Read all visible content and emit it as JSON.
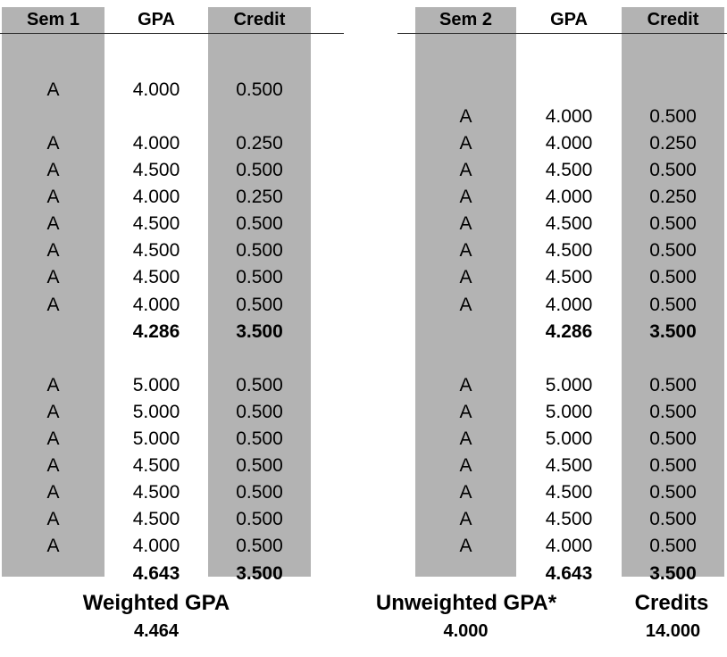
{
  "semesters": [
    {
      "headers": {
        "sem": "Sem 1",
        "gpa": "GPA",
        "credit": "Credit"
      },
      "rows": [
        {
          "row": 2,
          "grade": "A",
          "gpa": "4.000",
          "credit": "0.500"
        },
        {
          "row": 4,
          "grade": "A",
          "gpa": "4.000",
          "credit": "0.250"
        },
        {
          "row": 5,
          "grade": "A",
          "gpa": "4.500",
          "credit": "0.500"
        },
        {
          "row": 6,
          "grade": "A",
          "gpa": "4.000",
          "credit": "0.250"
        },
        {
          "row": 7,
          "grade": "A",
          "gpa": "4.500",
          "credit": "0.500"
        },
        {
          "row": 8,
          "grade": "A",
          "gpa": "4.500",
          "credit": "0.500"
        },
        {
          "row": 9,
          "grade": "A",
          "gpa": "4.500",
          "credit": "0.500"
        },
        {
          "row": 10,
          "grade": "A",
          "gpa": "4.000",
          "credit": "0.500"
        },
        {
          "row": 11,
          "total": true,
          "gpa": "4.286",
          "credit": "3.500"
        },
        {
          "row": 13,
          "grade": "A",
          "gpa": "5.000",
          "credit": "0.500"
        },
        {
          "row": 14,
          "grade": "A",
          "gpa": "5.000",
          "credit": "0.500"
        },
        {
          "row": 15,
          "grade": "A",
          "gpa": "5.000",
          "credit": "0.500"
        },
        {
          "row": 16,
          "grade": "A",
          "gpa": "4.500",
          "credit": "0.500"
        },
        {
          "row": 17,
          "grade": "A",
          "gpa": "4.500",
          "credit": "0.500"
        },
        {
          "row": 18,
          "grade": "A",
          "gpa": "4.500",
          "credit": "0.500"
        },
        {
          "row": 19,
          "grade": "A",
          "gpa": "4.000",
          "credit": "0.500"
        },
        {
          "row": 20,
          "total": true,
          "gpa": "4.643",
          "credit": "3.500"
        }
      ]
    },
    {
      "headers": {
        "sem": "Sem 2",
        "gpa": "GPA",
        "credit": "Credit"
      },
      "rows": [
        {
          "row": 3,
          "grade": "A",
          "gpa": "4.000",
          "credit": "0.500"
        },
        {
          "row": 4,
          "grade": "A",
          "gpa": "4.000",
          "credit": "0.250"
        },
        {
          "row": 5,
          "grade": "A",
          "gpa": "4.500",
          "credit": "0.500"
        },
        {
          "row": 6,
          "grade": "A",
          "gpa": "4.000",
          "credit": "0.250"
        },
        {
          "row": 7,
          "grade": "A",
          "gpa": "4.500",
          "credit": "0.500"
        },
        {
          "row": 8,
          "grade": "A",
          "gpa": "4.500",
          "credit": "0.500"
        },
        {
          "row": 9,
          "grade": "A",
          "gpa": "4.500",
          "credit": "0.500"
        },
        {
          "row": 10,
          "grade": "A",
          "gpa": "4.000",
          "credit": "0.500"
        },
        {
          "row": 11,
          "total": true,
          "gpa": "4.286",
          "credit": "3.500"
        },
        {
          "row": 13,
          "grade": "A",
          "gpa": "5.000",
          "credit": "0.500"
        },
        {
          "row": 14,
          "grade": "A",
          "gpa": "5.000",
          "credit": "0.500"
        },
        {
          "row": 15,
          "grade": "A",
          "gpa": "5.000",
          "credit": "0.500"
        },
        {
          "row": 16,
          "grade": "A",
          "gpa": "4.500",
          "credit": "0.500"
        },
        {
          "row": 17,
          "grade": "A",
          "gpa": "4.500",
          "credit": "0.500"
        },
        {
          "row": 18,
          "grade": "A",
          "gpa": "4.500",
          "credit": "0.500"
        },
        {
          "row": 19,
          "grade": "A",
          "gpa": "4.000",
          "credit": "0.500"
        },
        {
          "row": 20,
          "total": true,
          "gpa": "4.643",
          "credit": "3.500"
        }
      ]
    }
  ],
  "summary": {
    "weighted_label": "Weighted GPA",
    "weighted_value": "4.464",
    "unweighted_label": "Unweighted GPA*",
    "unweighted_value": "4.000",
    "credits_label": "Credits",
    "credits_value": "14.000"
  }
}
